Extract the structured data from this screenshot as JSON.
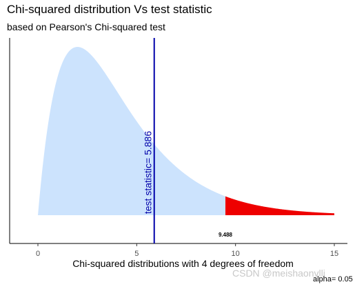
{
  "title": "Chi-squared distribution Vs test statistic",
  "subtitle": "based on Pearson's Chi-squared test",
  "watermark": "CSDN @meishaonvlli",
  "chart_data": {
    "type": "area",
    "title": "Chi-squared distribution Vs test statistic",
    "subtitle": "based on Pearson's Chi-squared test",
    "xlabel": "Chi-squared distributions with 4 degrees of freedom",
    "ylabel": "",
    "degrees_of_freedom": 4,
    "xlim": [
      0,
      15
    ],
    "x_ticks": [
      0,
      5,
      10,
      15
    ],
    "x_tick_labels": [
      "0",
      "5",
      "10",
      "15"
    ],
    "grid": false,
    "series": [
      {
        "name": "",
        "x_range": [
          0,
          9.488
        ],
        "color": "#cce3fd"
      },
      {
        "name": "",
        "x_range": [
          9.488,
          15
        ],
        "color": "#ee0000"
      }
    ],
    "test_statistic": {
      "value": 5.886,
      "label": "test statistic= 5.886",
      "color": "#0000aa"
    },
    "critical_value": {
      "value": 9.488,
      "label": "9.488"
    },
    "alpha_label": "alpha= 0.05"
  }
}
